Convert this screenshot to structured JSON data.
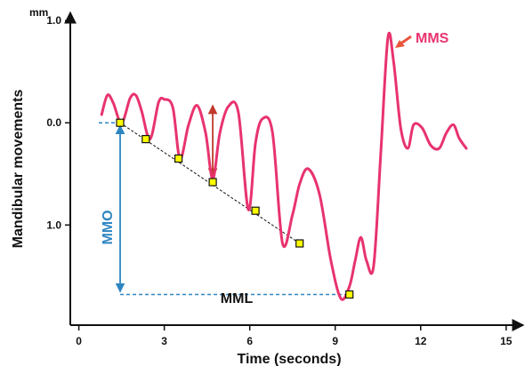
{
  "chart_data": {
    "type": "line",
    "title": "",
    "xlabel": "Time (seconds)",
    "ylabel": "Mandibular movements",
    "y_unit": "mm",
    "xlim": [
      -0.3,
      15.6
    ],
    "ylim": [
      1.98,
      -1.08
    ],
    "y_axis_direction": "downward-positive",
    "x_ticks": [
      0,
      3,
      6,
      9,
      12,
      15
    ],
    "x_tick_labels": [
      "0",
      "3",
      "6",
      "9",
      "12",
      "15"
    ],
    "y_ticks": [
      -1.0,
      0.0,
      1.0
    ],
    "y_tick_labels": [
      "1.0",
      "0.0",
      "1.0"
    ],
    "grid": false,
    "legend": "none",
    "series": [
      {
        "color": "#e8336e",
        "x": [
          0.8,
          1.0,
          1.2,
          1.5,
          1.8,
          2.0,
          2.2,
          2.5,
          2.8,
          3.0,
          3.3,
          3.55,
          3.85,
          4.15,
          4.45,
          4.7,
          4.95,
          5.25,
          5.6,
          5.95,
          6.2,
          6.45,
          6.8,
          7.15,
          7.5,
          7.75,
          8.05,
          8.45,
          8.85,
          9.2,
          9.5,
          9.7,
          9.9,
          10.1,
          10.35,
          10.6,
          10.85,
          11.05,
          11.3,
          11.55,
          11.75,
          12.05,
          12.35,
          12.65,
          12.9,
          13.15,
          13.35,
          13.6
        ],
        "y": [
          -0.08,
          -0.27,
          -0.2,
          0.0,
          -0.24,
          -0.27,
          -0.12,
          0.16,
          -0.2,
          -0.23,
          -0.15,
          0.35,
          0.02,
          -0.17,
          0.1,
          0.55,
          0.1,
          -0.16,
          -0.1,
          0.85,
          0.2,
          -0.04,
          0.1,
          1.18,
          0.9,
          0.6,
          0.45,
          0.7,
          1.35,
          1.72,
          1.6,
          1.35,
          1.12,
          1.35,
          1.4,
          0.3,
          -0.83,
          -0.6,
          0.05,
          0.25,
          0.02,
          0.05,
          0.22,
          0.25,
          0.1,
          0.02,
          0.15,
          0.25
        ]
      }
    ],
    "markers": {
      "x": [
        1.45,
        2.35,
        3.5,
        4.7,
        6.2,
        7.75,
        9.5
      ],
      "y": [
        0.0,
        0.16,
        0.35,
        0.58,
        0.86,
        1.18,
        1.68
      ]
    },
    "annotations": [
      {
        "text": "MMS",
        "color": "#e8336e"
      },
      {
        "text": "MMO",
        "color": "#2e86c1"
      },
      {
        "text": "MML",
        "color": "#111111"
      }
    ]
  }
}
